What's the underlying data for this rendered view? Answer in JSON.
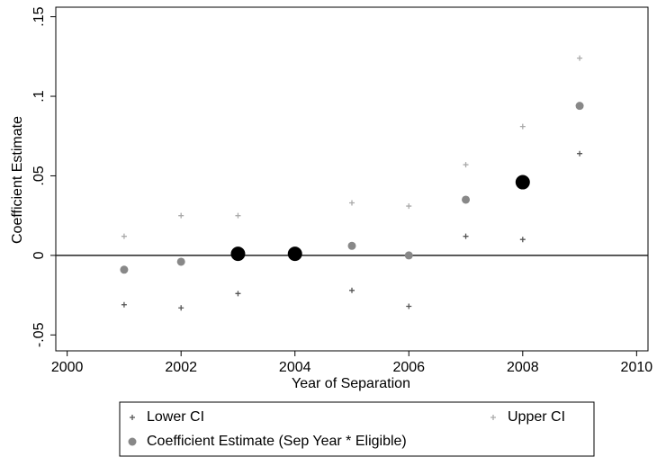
{
  "chart_data": {
    "type": "scatter",
    "xlabel": "Year of Separation",
    "ylabel": "Coefficient Estimate",
    "x": [
      2001,
      2002,
      2003,
      2004,
      2005,
      2006,
      2007,
      2008,
      2009
    ],
    "series": [
      {
        "name": "Lower CI",
        "color": "#555555",
        "marker": "plus",
        "values": [
          -0.031,
          -0.033,
          -0.024,
          null,
          -0.022,
          -0.032,
          0.012,
          0.01,
          0.064
        ]
      },
      {
        "name": "Upper CI",
        "color": "#aaaaaa",
        "marker": "plus",
        "values": [
          0.012,
          0.025,
          0.025,
          null,
          0.033,
          0.031,
          0.057,
          0.081,
          0.124
        ]
      },
      {
        "name": "Coefficient Estimate (Sep Year * Eligible)",
        "color": "#888888",
        "marker": "dot",
        "values": [
          -0.009,
          -0.004,
          null,
          null,
          0.006,
          0.0,
          0.035,
          null,
          0.094
        ]
      },
      {
        "color": "#000000",
        "marker": "bigdot",
        "values": [
          null,
          null,
          0.001,
          0.001,
          null,
          null,
          null,
          0.046,
          null
        ]
      }
    ],
    "xlim": [
      1999.8,
      2010.2
    ],
    "xticks": [
      2000,
      2002,
      2004,
      2006,
      2008,
      2010
    ],
    "ylim": [
      -0.06,
      0.156
    ],
    "yticks": [
      {
        "value": -0.05,
        "label": "-.05"
      },
      0,
      {
        "value": 0.05,
        "label": ".05"
      },
      {
        "value": 0.1,
        "label": ".1"
      },
      {
        "value": 0.15,
        "label": ".15"
      }
    ],
    "reference_line": 0
  }
}
